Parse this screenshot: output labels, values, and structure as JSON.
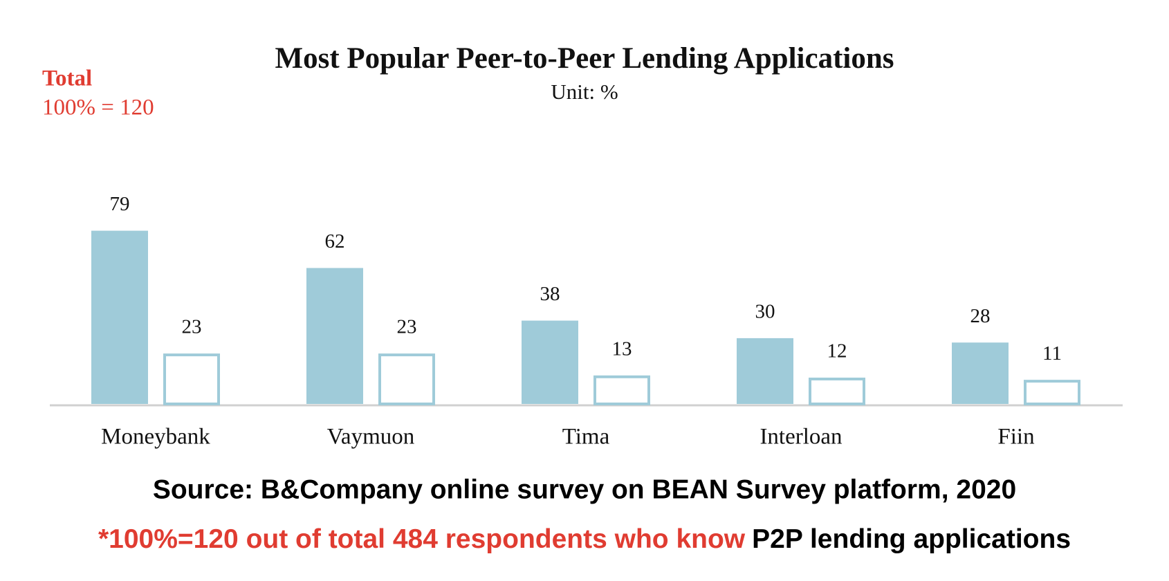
{
  "chart_data": {
    "type": "bar",
    "title": "Most Popular Peer-to-Peer Lending Applications",
    "subtitle": "Unit: %",
    "annotations": {
      "total_label": "Total",
      "total_value": "100% = 120"
    },
    "source": "Source: B&Company online survey on BEAN Survey platform, 2020",
    "footnote": {
      "highlight": "*100%=120 out of total 484 respondents who know",
      "rest": "P2P lending applications"
    },
    "categories": [
      "Moneybank",
      "Vaymuon",
      "Tima",
      "Interloan",
      "Fiin"
    ],
    "series": [
      {
        "color": "#9fcbd9",
        "style": "filled",
        "values": [
          79,
          62,
          38,
          30,
          28
        ]
      },
      {
        "color": "#9fcbd9",
        "style": "outline",
        "values": [
          23,
          23,
          13,
          12,
          11
        ]
      }
    ]
  }
}
